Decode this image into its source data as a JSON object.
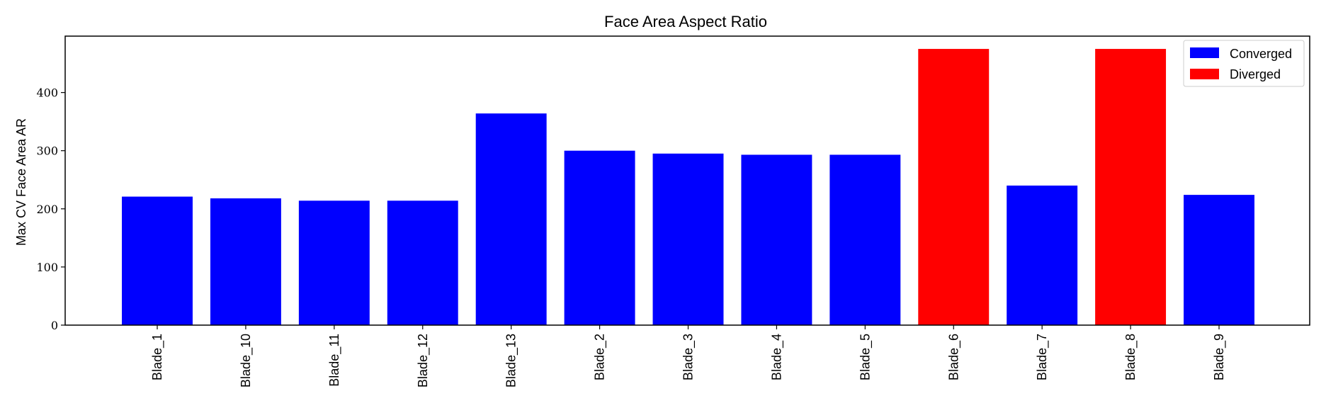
{
  "chart_data": {
    "type": "bar",
    "title": "Face Area Aspect Ratio",
    "xlabel": "",
    "ylabel": "Max CV Face Area AR",
    "ylim": [
      0,
      497
    ],
    "yticks": [
      0,
      100,
      200,
      300,
      400
    ],
    "categories": [
      "Blade_1",
      "Blade_10",
      "Blade_11",
      "Blade_12",
      "Blade_13",
      "Blade_2",
      "Blade_3",
      "Blade_4",
      "Blade_5",
      "Blade_6",
      "Blade_7",
      "Blade_8",
      "Blade_9"
    ],
    "values": [
      221,
      218,
      214,
      214,
      364,
      300,
      295,
      293,
      293,
      475,
      240,
      475,
      224
    ],
    "status": [
      "Converged",
      "Converged",
      "Converged",
      "Converged",
      "Converged",
      "Converged",
      "Converged",
      "Converged",
      "Converged",
      "Diverged",
      "Converged",
      "Diverged",
      "Converged"
    ],
    "legend": [
      {
        "label": "Converged",
        "color": "#0000ff"
      },
      {
        "label": "Diverged",
        "color": "#ff0000"
      }
    ],
    "legend_position": "top-right",
    "grid": false
  }
}
